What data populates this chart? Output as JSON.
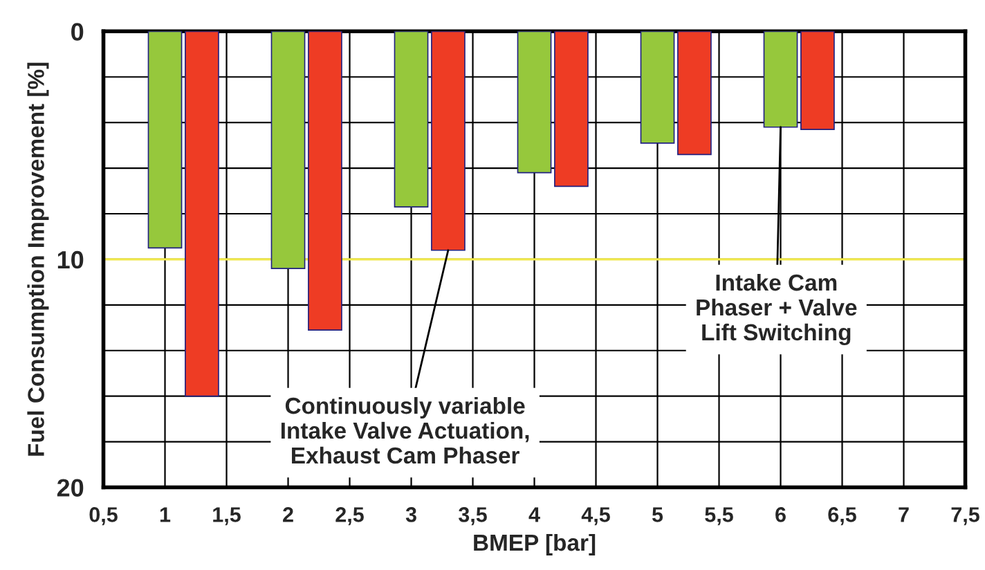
{
  "chart_data": {
    "type": "bar",
    "xlabel": "BMEP [bar]",
    "ylabel": "Fuel Consumption Improvement [%]",
    "series": [
      {
        "color": "#96c83c",
        "x": [
          1,
          2,
          3,
          4,
          5,
          6
        ],
        "values": [
          9.5,
          10.4,
          7.7,
          6.2,
          4.9,
          4.2
        ]
      },
      {
        "color": "#ee3c24",
        "x": [
          1.3,
          2.3,
          3.3,
          4.3,
          5.3,
          6.3
        ],
        "values": [
          16.0,
          13.1,
          9.6,
          6.8,
          5.4,
          4.3
        ]
      }
    ],
    "xlim": [
      0.5,
      7.5
    ],
    "xticks": [
      {
        "value": 0.5,
        "label": "0,5"
      },
      1,
      {
        "value": 1.5,
        "label": "1,5"
      },
      2,
      {
        "value": 2.5,
        "label": "2,5"
      },
      3,
      {
        "value": 3.5,
        "label": "3,5"
      },
      4,
      {
        "value": 4.5,
        "label": "4,5"
      },
      5,
      {
        "value": 5.5,
        "label": "5,5"
      },
      6,
      {
        "value": 6.5,
        "label": "6,5"
      },
      7,
      {
        "value": 7.5,
        "label": "7,5"
      }
    ],
    "ylim": [
      20,
      0
    ],
    "yticks": [
      0,
      {
        "value": 2,
        "label": null
      },
      {
        "value": 4,
        "label": null
      },
      {
        "value": 6,
        "label": null
      },
      {
        "value": 8,
        "label": null
      },
      10,
      {
        "value": 12,
        "label": null
      },
      {
        "value": 14,
        "label": null
      },
      {
        "value": 16,
        "label": null
      },
      {
        "value": 18,
        "label": null
      },
      20
    ],
    "grid": true,
    "ref_lines": [
      {
        "axis": "y",
        "value": 10,
        "color": "#f0e84a"
      }
    ],
    "annotations": [
      {
        "text": "Continuously variable\nIntake Valve Actuation,\nExhaust Cam Phaser",
        "x": 3.3,
        "y": 9.6
      },
      {
        "text": "Intake Cam\nPhaser + Valve\nLift Switching",
        "x": 6,
        "y": 4.2
      }
    ]
  }
}
